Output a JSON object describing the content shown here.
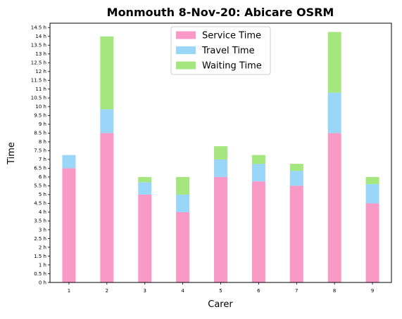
{
  "chart_data": {
    "type": "bar",
    "stacked": true,
    "title": "Monmouth 8-Nov-20: Abicare OSRM",
    "xlabel": "Carer",
    "ylabel": "Time",
    "categories": [
      "1",
      "2",
      "3",
      "4",
      "5",
      "6",
      "7",
      "8",
      "9"
    ],
    "series": [
      {
        "name": "Service Time",
        "color": "#f899c6",
        "values": [
          6.5,
          8.5,
          5.0,
          4.0,
          6.0,
          5.75,
          5.5,
          8.5,
          4.5
        ]
      },
      {
        "name": "Travel Time",
        "color": "#9ad6f8",
        "values": [
          0.75,
          1.35,
          0.7,
          1.0,
          1.0,
          1.0,
          0.85,
          2.3,
          1.1
        ]
      },
      {
        "name": "Waiting Time",
        "color": "#a6e67e",
        "values": [
          0.0,
          4.15,
          0.3,
          1.0,
          0.75,
          0.5,
          0.4,
          3.45,
          0.4
        ]
      }
    ],
    "ylim": [
      0,
      14.75
    ],
    "ytick_step": 0.5,
    "ytick_suffix": " h",
    "grid": false,
    "legend_position": "top-center"
  }
}
